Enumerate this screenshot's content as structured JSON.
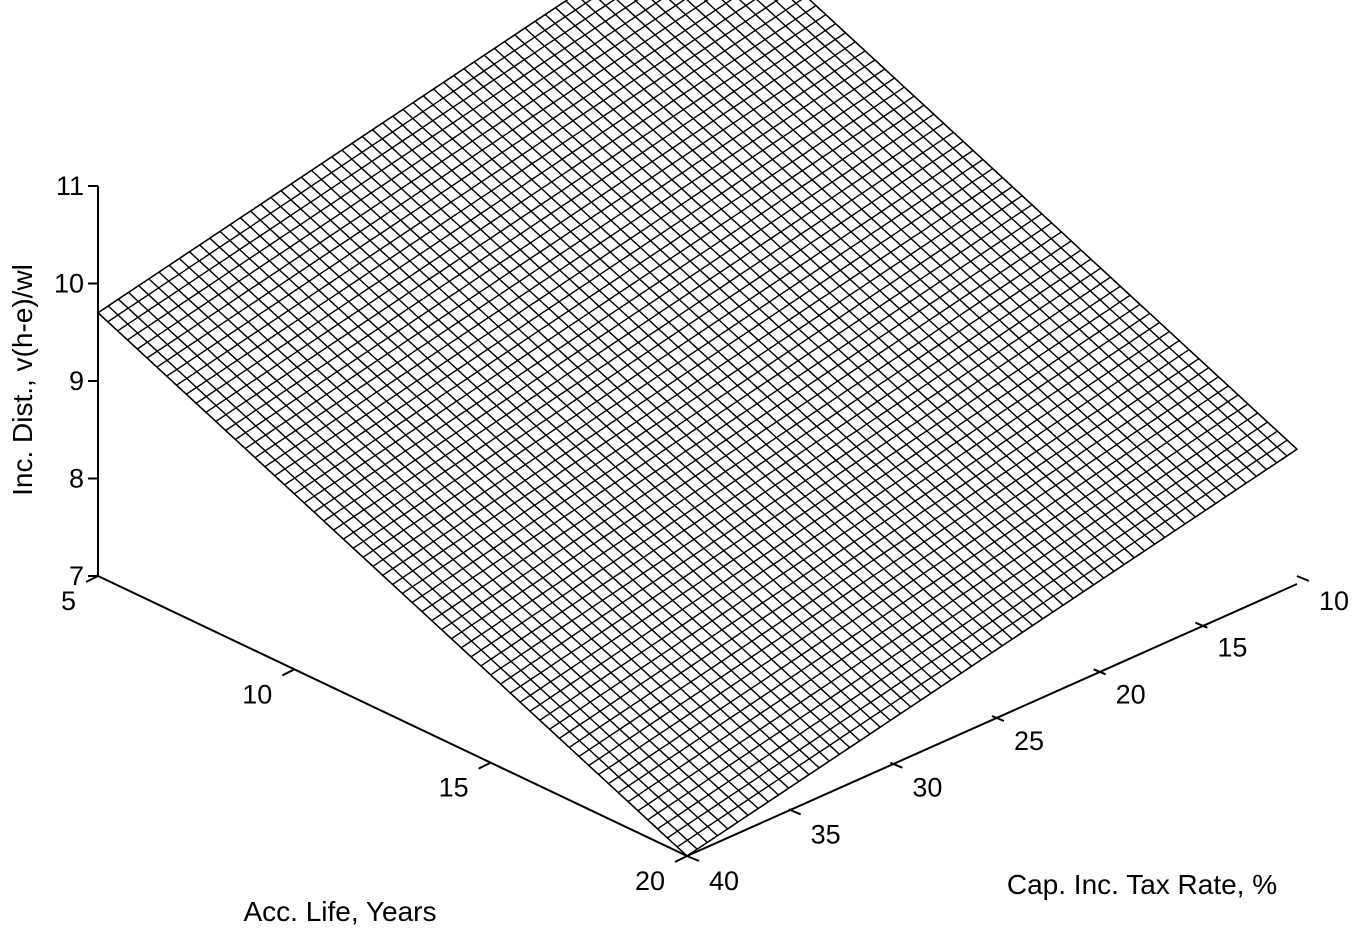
{
  "chart_data": {
    "type": "surface",
    "title": "",
    "xlabel": "Acc. Life, Years",
    "ylabel": "Cap. Inc. Tax Rate, %",
    "zlabel": "Inc. Dist., v(h-e)/wl",
    "x_ticks": [
      "5",
      "10",
      "15",
      "20"
    ],
    "y_ticks": [
      "10",
      "15",
      "20",
      "25",
      "30",
      "35",
      "40"
    ],
    "z_ticks": [
      "7",
      "8",
      "9",
      "10",
      "11"
    ],
    "xlim": [
      5,
      20
    ],
    "ylim": [
      10,
      40
    ],
    "zlim": [
      7,
      11
    ],
    "grid": false,
    "surface_values": {
      "x_values": [
        5,
        20
      ],
      "y_values": [
        10,
        40
      ],
      "z": [
        [
          11.0,
          9.7
        ],
        [
          8.3,
          7.0
        ]
      ],
      "note_rows": "rows correspond to x_values (Acc. Life), columns to y_values (Cap. Inc. Tax Rate)"
    },
    "mesh_resolution": 60
  }
}
